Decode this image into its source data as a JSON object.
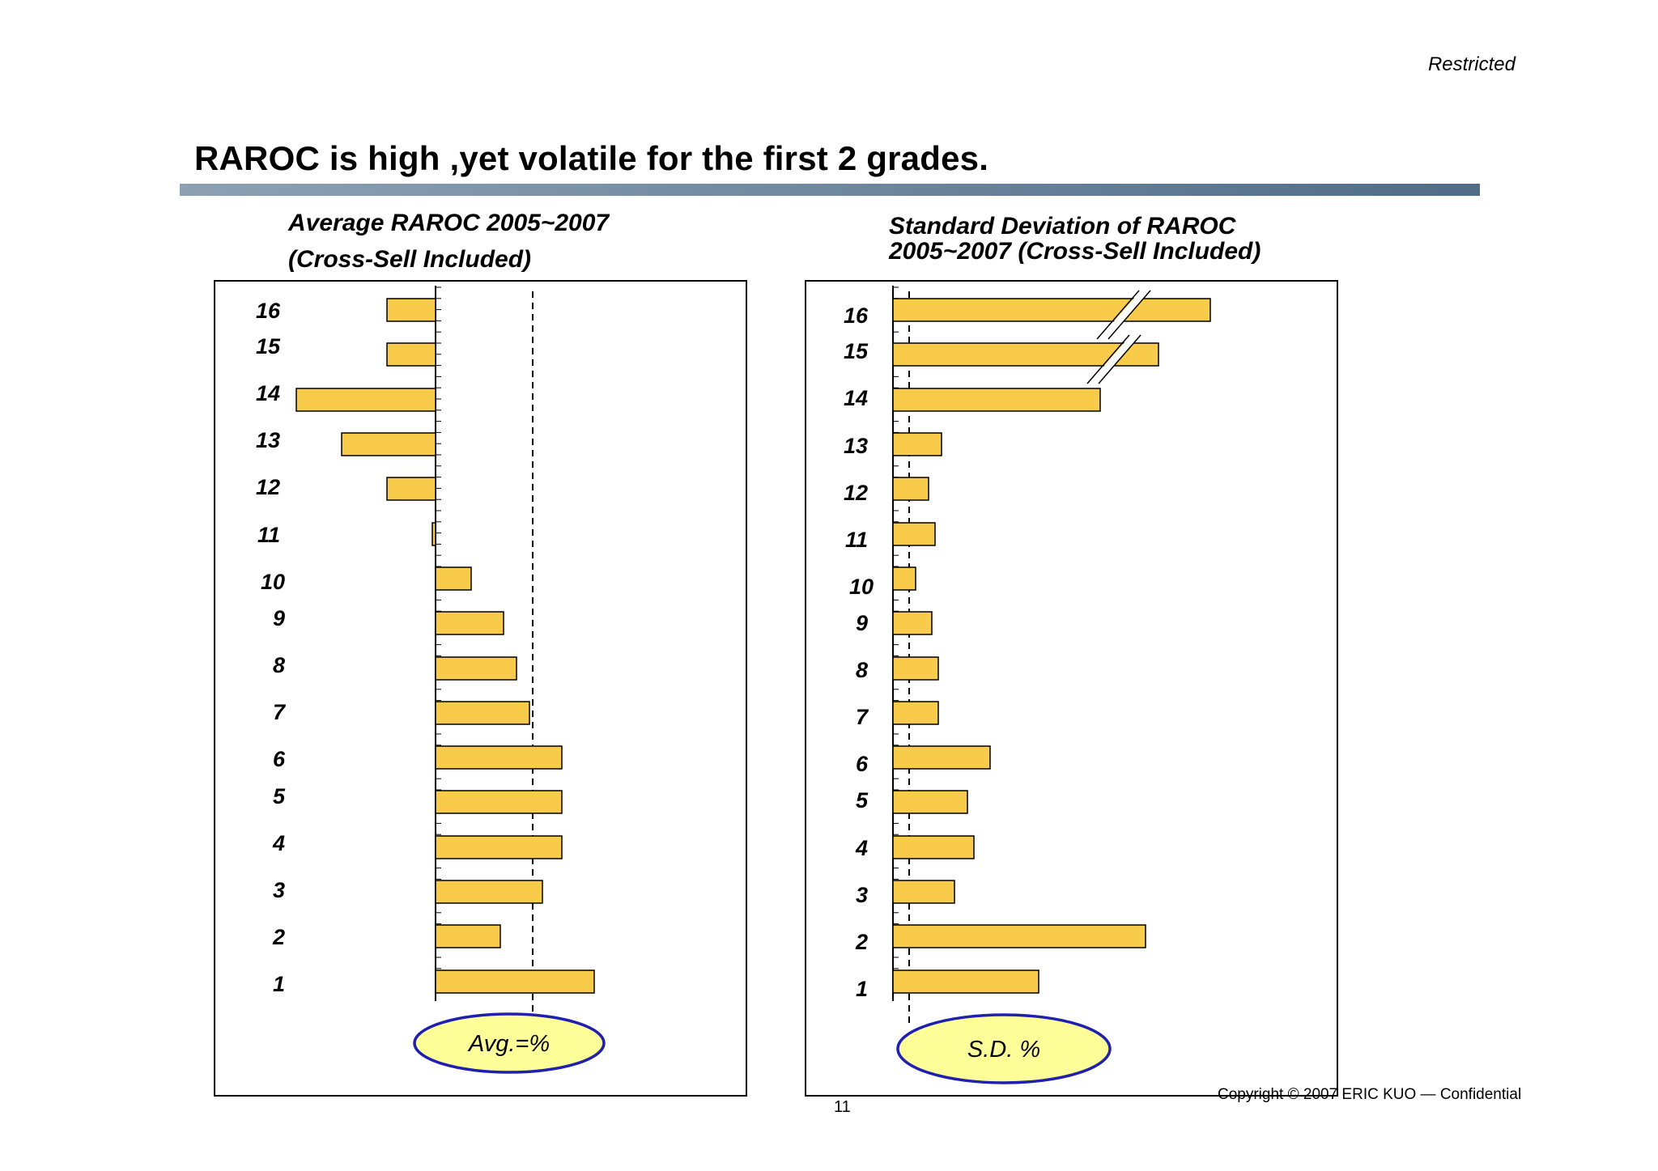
{
  "header": {
    "classification": "Restricted",
    "title": "RAROC is high ,yet volatile for the first 2 grades."
  },
  "footer": {
    "page_number": "11",
    "copyright": "Copyright © 2007 ERIC KUO — Confidential"
  },
  "colors": {
    "bar_fill": "#F8CB4A",
    "bar_stroke": "#000000",
    "ellipse_fill": "#FFFF99",
    "ellipse_stroke": "#1F1FB0",
    "title_rule": "#5B7A95"
  },
  "chart_data": [
    {
      "type": "bar",
      "orientation": "horizontal",
      "title_lines": [
        "Average RAROC 2005~2007",
        "(Cross-Sell Included)"
      ],
      "categories": [
        "16",
        "15",
        "14",
        "13",
        "12",
        "11",
        "10",
        "9",
        "8",
        "7",
        "6",
        "5",
        "4",
        "3",
        "2",
        "1"
      ],
      "values": [
        -1.5,
        -1.5,
        -4.3,
        -2.9,
        -1.5,
        -0.1,
        1.1,
        2.1,
        2.5,
        2.9,
        3.9,
        3.9,
        3.9,
        3.3,
        2.0,
        4.9
      ],
      "value_units": "relative to zero line (approximate, no scale printed)",
      "reference_line": {
        "label": "Avg.=%",
        "value": 3.0,
        "style": "dashed"
      },
      "ylabel": "",
      "xlabel": ""
    },
    {
      "type": "bar",
      "orientation": "horizontal",
      "title_lines": [
        "Standard Deviation of RAROC",
        "2005~2007 (Cross-Sell Included)"
      ],
      "categories": [
        "16",
        "15",
        "14",
        "13",
        "12",
        "11",
        "10",
        "9",
        "8",
        "7",
        "6",
        "5",
        "4",
        "3",
        "2",
        "1"
      ],
      "values": [
        9.8,
        8.2,
        6.4,
        1.5,
        1.1,
        1.3,
        0.7,
        1.2,
        1.4,
        1.4,
        3.0,
        2.3,
        2.5,
        1.9,
        7.8,
        4.5
      ],
      "broken_bars": [
        "16",
        "15"
      ],
      "value_units": "relative (approximate, no scale printed)",
      "reference_line": {
        "label": "S.D. %",
        "value": 0.5,
        "style": "dashed"
      },
      "ylabel": "",
      "xlabel": ""
    }
  ]
}
